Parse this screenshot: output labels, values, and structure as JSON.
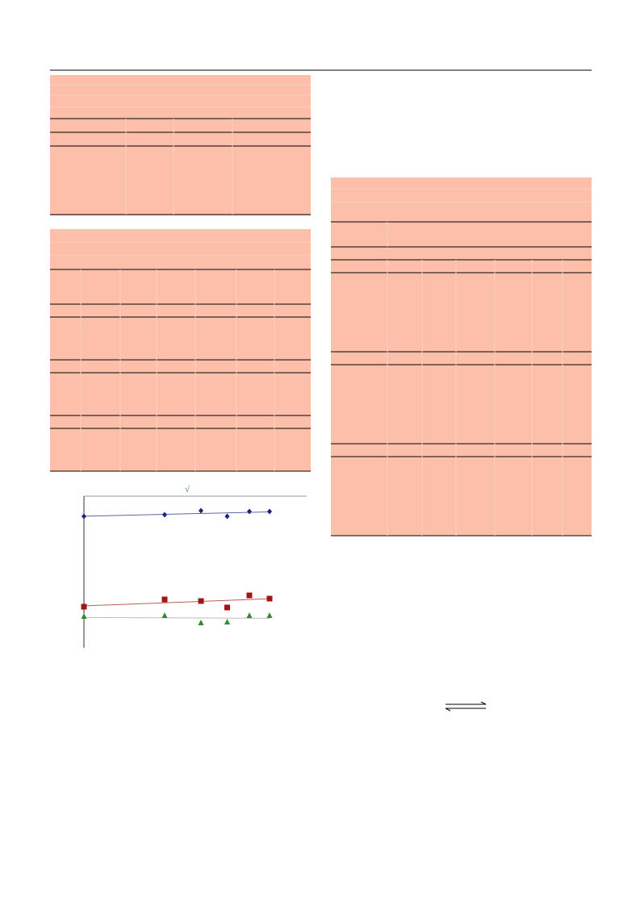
{
  "chart_data": {
    "type": "scatter",
    "title": "√",
    "x": [
      0,
      4,
      5.8,
      7.1,
      8.2,
      9.2
    ],
    "xlim": [
      0,
      11.04
    ],
    "ylim": [
      0,
      7.4
    ],
    "trendline": true,
    "series": [
      {
        "color": "#1a237e",
        "marker": "diamond",
        "values": [
          6.4,
          6.48,
          6.68,
          6.4,
          6.64,
          6.64
        ]
      },
      {
        "color": "#a31515",
        "marker": "square",
        "values": [
          1.92,
          2.28,
          2.2,
          1.88,
          2.48,
          2.32
        ]
      },
      {
        "color": "#2e8b2e",
        "marker": "triangle",
        "values": [
          1.44,
          1.48,
          1.12,
          1.16,
          1.48,
          1.48
        ]
      }
    ]
  }
}
